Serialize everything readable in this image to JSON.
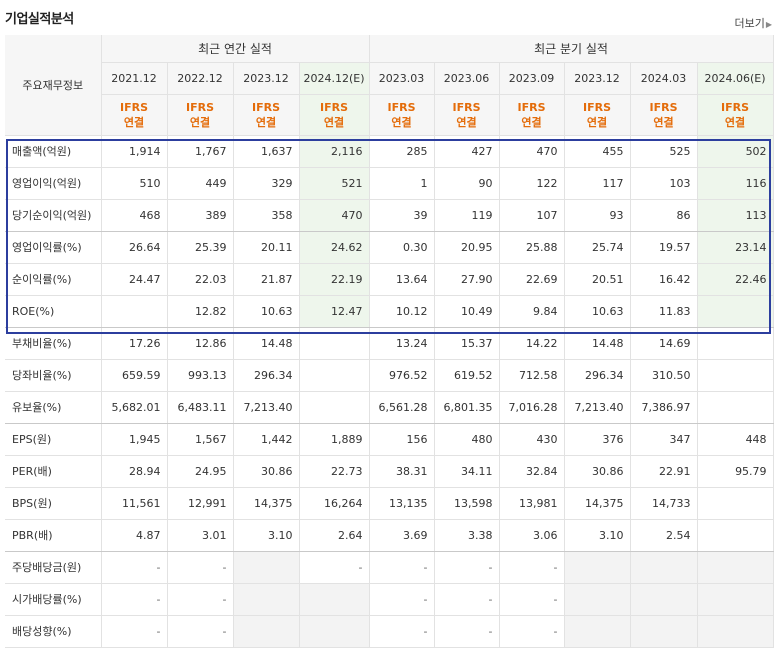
{
  "header": {
    "title": "기업실적분석",
    "more_label": "더보기",
    "more_arrow": "▶"
  },
  "table": {
    "corner_label": "주요재무정보",
    "annual_group": "최근 연간 실적",
    "quarter_group": "최근 분기 실적",
    "periods": [
      "2021.12",
      "2022.12",
      "2023.12",
      "2024.12(E)",
      "2023.03",
      "2023.06",
      "2023.09",
      "2023.12",
      "2024.03",
      "2024.06(E)"
    ],
    "ifrs_top": "IFRS",
    "ifrs_bottom": "연결",
    "rows": [
      {
        "label": "매출액(억원)",
        "values": [
          "1,914",
          "1,767",
          "1,637",
          "2,116",
          "285",
          "427",
          "470",
          "455",
          "525",
          "502"
        ]
      },
      {
        "label": "영업이익(억원)",
        "values": [
          "510",
          "449",
          "329",
          "521",
          "1",
          "90",
          "122",
          "117",
          "103",
          "116"
        ]
      },
      {
        "label": "당기순이익(억원)",
        "values": [
          "468",
          "389",
          "358",
          "470",
          "39",
          "119",
          "107",
          "93",
          "86",
          "113"
        ]
      },
      {
        "label": "영업이익률(%)",
        "values": [
          "26.64",
          "25.39",
          "20.11",
          "24.62",
          "0.30",
          "20.95",
          "25.88",
          "25.74",
          "19.57",
          "23.14"
        ]
      },
      {
        "label": "순이익률(%)",
        "values": [
          "24.47",
          "22.03",
          "21.87",
          "22.19",
          "13.64",
          "27.90",
          "22.69",
          "20.51",
          "16.42",
          "22.46"
        ]
      },
      {
        "label": "ROE(%)",
        "values": [
          "",
          "12.82",
          "10.63",
          "12.47",
          "10.12",
          "10.49",
          "9.84",
          "10.63",
          "11.83",
          ""
        ]
      },
      {
        "label": "부채비율(%)",
        "values": [
          "17.26",
          "12.86",
          "14.48",
          "",
          "13.24",
          "15.37",
          "14.22",
          "14.48",
          "14.69",
          ""
        ]
      },
      {
        "label": "당좌비율(%)",
        "values": [
          "659.59",
          "993.13",
          "296.34",
          "",
          "976.52",
          "619.52",
          "712.58",
          "296.34",
          "310.50",
          ""
        ]
      },
      {
        "label": "유보율(%)",
        "values": [
          "5,682.01",
          "6,483.11",
          "7,213.40",
          "",
          "6,561.28",
          "6,801.35",
          "7,016.28",
          "7,213.40",
          "7,386.97",
          ""
        ]
      },
      {
        "label": "EPS(원)",
        "values": [
          "1,945",
          "1,567",
          "1,442",
          "1,889",
          "156",
          "480",
          "430",
          "376",
          "347",
          "448"
        ]
      },
      {
        "label": "PER(배)",
        "values": [
          "28.94",
          "24.95",
          "30.86",
          "22.73",
          "38.31",
          "34.11",
          "32.84",
          "30.86",
          "22.91",
          "95.79"
        ]
      },
      {
        "label": "BPS(원)",
        "values": [
          "11,561",
          "12,991",
          "14,375",
          "16,264",
          "13,135",
          "13,598",
          "13,981",
          "14,375",
          "14,733",
          ""
        ]
      },
      {
        "label": "PBR(배)",
        "values": [
          "4.87",
          "3.01",
          "3.10",
          "2.64",
          "3.69",
          "3.38",
          "3.06",
          "3.10",
          "2.54",
          ""
        ]
      },
      {
        "label": "주당배당금(원)",
        "values": [
          "-",
          "-",
          "",
          "-",
          "-",
          "-",
          "-",
          "",
          "",
          ""
        ]
      },
      {
        "label": "시가배당률(%)",
        "values": [
          "-",
          "-",
          "",
          "",
          "-",
          "-",
          "-",
          "",
          "",
          ""
        ]
      },
      {
        "label": "배당성향(%)",
        "values": [
          "-",
          "-",
          "",
          "",
          "-",
          "-",
          "-",
          "",
          "",
          ""
        ]
      }
    ]
  },
  "colors": {
    "ifrs": "#e46c0a",
    "highlight_border": "#2c3e9e",
    "estimate_bg": "#eef6ec"
  }
}
